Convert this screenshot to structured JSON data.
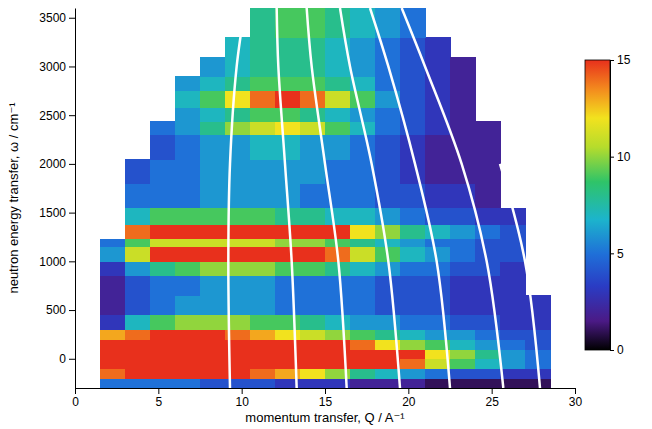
{
  "chart_data": {
    "type": "heatmap",
    "x_label": "momentum transfer, Q / A⁻¹",
    "y_label": "neutron energy transfer, ω / cm⁻¹",
    "xlim": [
      0,
      30
    ],
    "ylim": [
      -300,
      3600
    ],
    "xticks": [
      0,
      5,
      10,
      15,
      20,
      25,
      30
    ],
    "yticks": [
      0,
      500,
      1000,
      1500,
      2000,
      2500,
      3000,
      3500
    ],
    "x_edges": [
      0,
      1.5,
      3,
      4.5,
      6,
      7.5,
      9,
      10.5,
      12,
      13.5,
      15,
      16.5,
      18,
      19.5,
      21,
      22.5,
      24,
      25.5,
      27,
      28.5,
      30
    ],
    "y_edges": [
      -300,
      -200,
      -100,
      0,
      100,
      200,
      300,
      450,
      650,
      850,
      1000,
      1150,
      1230,
      1380,
      1550,
      1800,
      2050,
      2300,
      2440,
      2580,
      2750,
      2900,
      3100,
      3300,
      3600
    ],
    "cells": [
      [
        null,
        5,
        5,
        5,
        5,
        4,
        4,
        4,
        3,
        3,
        3,
        2,
        2,
        2,
        1,
        1,
        1,
        1,
        1,
        null
      ],
      [
        null,
        14,
        15,
        15,
        15,
        15,
        15,
        14,
        13,
        12,
        10,
        8,
        7,
        6,
        5,
        4,
        4,
        3,
        3,
        null
      ],
      [
        null,
        18,
        18,
        18,
        18,
        18,
        18,
        18,
        18,
        18,
        18,
        18,
        15,
        14,
        11,
        9,
        7,
        6,
        5,
        null
      ],
      [
        null,
        18,
        18,
        18,
        18,
        18,
        18,
        18,
        18,
        18,
        18,
        18,
        18,
        15,
        12,
        10,
        8,
        6,
        5,
        null
      ],
      [
        null,
        17,
        17,
        17,
        17,
        17,
        17,
        17,
        17,
        17,
        17,
        14,
        12,
        10,
        9,
        7,
        6,
        5,
        4,
        null
      ],
      [
        null,
        13,
        14,
        15,
        15,
        15,
        14,
        13,
        12,
        11,
        10,
        9,
        8,
        7,
        6,
        6,
        5,
        4,
        4,
        null
      ],
      [
        null,
        3,
        7,
        9,
        10,
        10,
        10,
        9,
        9,
        8,
        7,
        6,
        6,
        5,
        5,
        4,
        4,
        3,
        3,
        null
      ],
      [
        null,
        2,
        4,
        5,
        6,
        6,
        6,
        6,
        5,
        5,
        5,
        5,
        4,
        4,
        4,
        3,
        3,
        3,
        3,
        null
      ],
      [
        null,
        2,
        4,
        5,
        5,
        6,
        6,
        6,
        5,
        5,
        5,
        5,
        4,
        4,
        4,
        3,
        3,
        3,
        null,
        null
      ],
      [
        null,
        3,
        6,
        8,
        9,
        10,
        10,
        10,
        9,
        9,
        8,
        7,
        6,
        5,
        5,
        4,
        4,
        3,
        null,
        null
      ],
      [
        null,
        6,
        11,
        15,
        17,
        17,
        17,
        17,
        16,
        15,
        14,
        11,
        9,
        7,
        6,
        5,
        4,
        4,
        null,
        null
      ],
      [
        null,
        5,
        9,
        11,
        11,
        11,
        11,
        11,
        10,
        10,
        9,
        8,
        7,
        6,
        5,
        5,
        4,
        4,
        null,
        null
      ],
      [
        null,
        null,
        14,
        17,
        18,
        18,
        18,
        18,
        17,
        16,
        15,
        12,
        10,
        8,
        7,
        6,
        5,
        4,
        null,
        null
      ],
      [
        null,
        null,
        7,
        9,
        9,
        9,
        9,
        9,
        8,
        8,
        7,
        7,
        6,
        5,
        4,
        4,
        3,
        3,
        null,
        null
      ],
      [
        null,
        null,
        5,
        5,
        5,
        6,
        6,
        6,
        6,
        5,
        5,
        5,
        4,
        4,
        3,
        3,
        2,
        null,
        null,
        null
      ],
      [
        null,
        null,
        4,
        5,
        5,
        6,
        6,
        6,
        6,
        6,
        5,
        5,
        4,
        3,
        2,
        2,
        2,
        null,
        null,
        null
      ],
      [
        null,
        null,
        null,
        4,
        5,
        6,
        6,
        7,
        7,
        6,
        6,
        5,
        4,
        3,
        2,
        2,
        2,
        null,
        null,
        null
      ],
      [
        null,
        null,
        null,
        5,
        6,
        8,
        10,
        11,
        12,
        11,
        9,
        7,
        5,
        4,
        3,
        2,
        2,
        null,
        null,
        null
      ],
      [
        null,
        null,
        null,
        null,
        6,
        7,
        8,
        9,
        9,
        8,
        7,
        6,
        5,
        4,
        3,
        2,
        null,
        null,
        null,
        null
      ],
      [
        null,
        null,
        null,
        null,
        7,
        9,
        12,
        14,
        16,
        14,
        11,
        9,
        6,
        4,
        3,
        2,
        null,
        null,
        null,
        null
      ],
      [
        null,
        null,
        null,
        null,
        6,
        7,
        8,
        9,
        9,
        9,
        8,
        7,
        5,
        4,
        3,
        2,
        null,
        null,
        null,
        null
      ],
      [
        null,
        null,
        null,
        null,
        null,
        6,
        7,
        8,
        8,
        8,
        7,
        6,
        5,
        4,
        3,
        2,
        null,
        null,
        null,
        null
      ],
      [
        null,
        null,
        null,
        null,
        null,
        null,
        7,
        8,
        8,
        8,
        7,
        6,
        5,
        4,
        3,
        null,
        null,
        null,
        null,
        null
      ],
      [
        null,
        null,
        null,
        null,
        null,
        null,
        null,
        8,
        9,
        9,
        8,
        7,
        6,
        5,
        null,
        null,
        null,
        null,
        null,
        null
      ]
    ],
    "colorbar": {
      "range": [
        0,
        15
      ],
      "ticks": [
        0,
        5,
        10,
        15
      ]
    },
    "lines": [
      {
        "color": "#ffffff",
        "x": [
          9.3,
          9.2,
          9.3,
          9.7,
          10.2
        ],
        "y": [
          -300,
          1000,
          2000,
          3000,
          3600
        ]
      },
      {
        "color": "#ffffff",
        "x": [
          13.3,
          13.0,
          12.6,
          12.2,
          12.1
        ],
        "y": [
          -300,
          1000,
          2000,
          3000,
          3600
        ]
      },
      {
        "color": "#ffffff",
        "x": [
          16.3,
          15.8,
          15.0,
          14.2,
          13.9
        ],
        "y": [
          -300,
          1000,
          2000,
          3000,
          3600
        ]
      },
      {
        "color": "#ffffff",
        "x": [
          19.5,
          18.8,
          17.8,
          16.5,
          15.9
        ],
        "y": [
          -300,
          1000,
          2000,
          3000,
          3600
        ]
      },
      {
        "color": "#ffffff",
        "x": [
          22.5,
          21.7,
          20.4,
          18.8,
          17.7
        ],
        "y": [
          -300,
          1000,
          2000,
          3000,
          3600
        ]
      },
      {
        "color": "#ffffff",
        "x": [
          25.7,
          24.7,
          23.2,
          21.0,
          19.6
        ],
        "y": [
          -300,
          1000,
          2000,
          3000,
          3600
        ]
      },
      {
        "color": "#ffffff",
        "x": [
          27.9,
          27.0,
          25.5
        ],
        "y": [
          -300,
          1000,
          2000
        ]
      }
    ]
  }
}
